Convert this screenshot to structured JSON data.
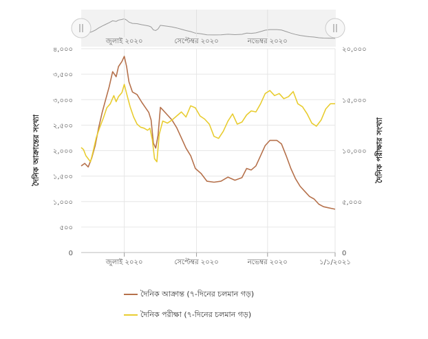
{
  "chart_data": {
    "type": "line",
    "title": "",
    "ylabel_left": "দৈনিক আক্রান্তের সংখ্যা",
    "ylabel_right": "দৈনিক পরীক্ষার সংখ্যা",
    "left_axis": {
      "min": 0,
      "max": 4000,
      "ticks": [
        "0",
        "৫০০",
        "১,০০০",
        "১,৫০০",
        "২,০০০",
        "২,৫০০",
        "৩,০০০",
        "৩,৫০০",
        "৪,০০০"
      ]
    },
    "right_axis": {
      "min": 0,
      "max": 20000,
      "ticks": [
        "0",
        "৫,০০০",
        "১০,০০০",
        "১৫,০০০",
        "২০,০০০"
      ]
    },
    "x_range_days": [
      0,
      218
    ],
    "x_ticks": [
      {
        "day": 37,
        "label": "জুলাই ২০২০"
      },
      {
        "day": 99,
        "label": "সেপ্টেম্বর ২০২০"
      },
      {
        "day": 160,
        "label": "নভেম্বর ২০২০"
      },
      {
        "day": 221,
        "label": "১/১/২০২১"
      }
    ],
    "navigator_labels": [
      "জুলাই ২০২০",
      "সেপ্টেম্বর ২০২০",
      "নভেম্বর ২০২০"
    ],
    "grid": true,
    "legend_position": "bottom",
    "series": [
      {
        "name": "দৈনিক আক্রান্ত (৭-দিনের চলমান গড়)",
        "axis": "left",
        "color": "#b5704a",
        "points": [
          [
            0,
            1700
          ],
          [
            3,
            1750
          ],
          [
            6,
            1680
          ],
          [
            9,
            1850
          ],
          [
            12,
            2100
          ],
          [
            15,
            2450
          ],
          [
            18,
            2750
          ],
          [
            21,
            3000
          ],
          [
            24,
            3250
          ],
          [
            27,
            3550
          ],
          [
            30,
            3450
          ],
          [
            32,
            3650
          ],
          [
            35,
            3750
          ],
          [
            37,
            3850
          ],
          [
            39,
            3650
          ],
          [
            41,
            3350
          ],
          [
            44,
            3150
          ],
          [
            48,
            3100
          ],
          [
            52,
            2950
          ],
          [
            55,
            2850
          ],
          [
            58,
            2750
          ],
          [
            60,
            2600
          ],
          [
            62,
            2150
          ],
          [
            64,
            2050
          ],
          [
            66,
            2300
          ],
          [
            68,
            2850
          ],
          [
            70,
            2800
          ],
          [
            74,
            2700
          ],
          [
            78,
            2600
          ],
          [
            82,
            2450
          ],
          [
            86,
            2250
          ],
          [
            90,
            2050
          ],
          [
            94,
            1900
          ],
          [
            98,
            1650
          ],
          [
            103,
            1550
          ],
          [
            108,
            1400
          ],
          [
            114,
            1380
          ],
          [
            120,
            1400
          ],
          [
            126,
            1480
          ],
          [
            132,
            1420
          ],
          [
            138,
            1470
          ],
          [
            142,
            1650
          ],
          [
            146,
            1620
          ],
          [
            150,
            1700
          ],
          [
            154,
            1900
          ],
          [
            158,
            2100
          ],
          [
            162,
            2200
          ],
          [
            168,
            2200
          ],
          [
            172,
            2130
          ],
          [
            176,
            1900
          ],
          [
            180,
            1650
          ],
          [
            184,
            1450
          ],
          [
            188,
            1300
          ],
          [
            192,
            1200
          ],
          [
            196,
            1100
          ],
          [
            200,
            1050
          ],
          [
            204,
            950
          ],
          [
            208,
            900
          ],
          [
            212,
            880
          ],
          [
            216,
            860
          ],
          [
            218,
            850
          ]
        ]
      },
      {
        "name": "দৈনিক পরীক্ষা (৭-দিনের চলমান গড়)",
        "axis": "right",
        "color": "#e8cc2f",
        "points": [
          [
            0,
            10300
          ],
          [
            2,
            10100
          ],
          [
            4,
            9500
          ],
          [
            6,
            9200
          ],
          [
            8,
            8900
          ],
          [
            10,
            9800
          ],
          [
            13,
            11300
          ],
          [
            16,
            12300
          ],
          [
            19,
            13200
          ],
          [
            22,
            14200
          ],
          [
            25,
            14600
          ],
          [
            28,
            15400
          ],
          [
            30,
            14800
          ],
          [
            32,
            15300
          ],
          [
            35,
            15700
          ],
          [
            37,
            16500
          ],
          [
            39,
            15600
          ],
          [
            42,
            14300
          ],
          [
            45,
            13300
          ],
          [
            48,
            12600
          ],
          [
            51,
            12300
          ],
          [
            54,
            12200
          ],
          [
            57,
            12000
          ],
          [
            59,
            12200
          ],
          [
            61,
            11100
          ],
          [
            63,
            9200
          ],
          [
            65,
            8900
          ],
          [
            67,
            11600
          ],
          [
            70,
            12900
          ],
          [
            74,
            12700
          ],
          [
            78,
            13000
          ],
          [
            82,
            13400
          ],
          [
            86,
            13800
          ],
          [
            90,
            13300
          ],
          [
            94,
            14400
          ],
          [
            98,
            14200
          ],
          [
            102,
            13400
          ],
          [
            106,
            13100
          ],
          [
            110,
            12600
          ],
          [
            114,
            11400
          ],
          [
            118,
            11200
          ],
          [
            122,
            11900
          ],
          [
            126,
            12900
          ],
          [
            130,
            13600
          ],
          [
            134,
            12600
          ],
          [
            138,
            12800
          ],
          [
            142,
            13500
          ],
          [
            146,
            13900
          ],
          [
            150,
            13800
          ],
          [
            154,
            14600
          ],
          [
            158,
            15600
          ],
          [
            162,
            15900
          ],
          [
            166,
            15400
          ],
          [
            170,
            15600
          ],
          [
            174,
            15100
          ],
          [
            178,
            15300
          ],
          [
            182,
            15800
          ],
          [
            186,
            14600
          ],
          [
            190,
            14300
          ],
          [
            194,
            13600
          ],
          [
            198,
            12700
          ],
          [
            202,
            12400
          ],
          [
            206,
            13000
          ],
          [
            210,
            14100
          ],
          [
            214,
            14600
          ],
          [
            218,
            14600
          ]
        ]
      }
    ]
  }
}
